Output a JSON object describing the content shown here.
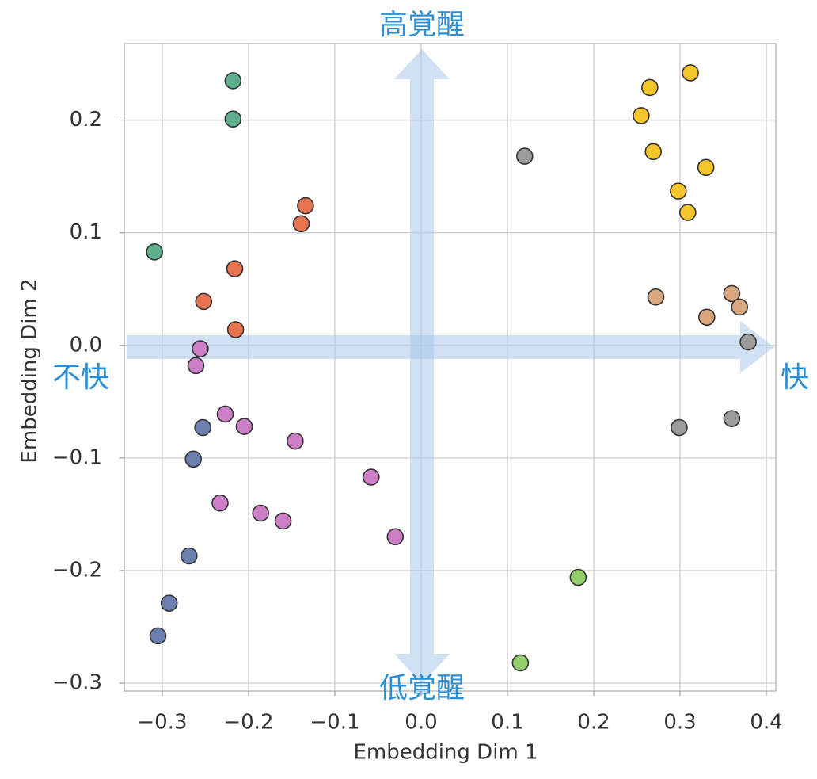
{
  "chart_data": {
    "type": "scatter",
    "xlabel": "Embedding Dim 1",
    "ylabel": "Embedding Dim 2",
    "annotations": {
      "top": "高覚醒",
      "bottom": "低覚醒",
      "left": "不快",
      "right": "快"
    },
    "xlim": [
      -0.344,
      0.411
    ],
    "ylim": [
      -0.307,
      0.268
    ],
    "xticks": [
      {
        "value": -0.3,
        "label": "−0.3"
      },
      {
        "value": -0.2,
        "label": "−0.2"
      },
      {
        "value": -0.1,
        "label": "−0.1"
      },
      {
        "value": 0,
        "label": "0.0"
      },
      0.1,
      0.2,
      0.3,
      0.4
    ],
    "yticks": [
      {
        "value": -0.3,
        "label": "−0.3"
      },
      {
        "value": -0.2,
        "label": "−0.2"
      },
      {
        "value": -0.1,
        "label": "−0.1"
      },
      {
        "value": 0,
        "label": "0.0"
      },
      0.1,
      0.2
    ],
    "grid": true,
    "series": [
      {
        "color": "#5fae8c",
        "x": [
          -0.218,
          -0.218,
          -0.309
        ],
        "y": [
          0.235,
          0.201,
          0.083
        ]
      },
      {
        "color": "#e8734f",
        "x": [
          -0.134,
          -0.139,
          -0.216,
          -0.252,
          -0.215
        ],
        "y": [
          0.124,
          0.108,
          0.068,
          0.039,
          0.014
        ]
      },
      {
        "color": "#cc7fc6",
        "x": [
          -0.256,
          -0.261,
          -0.227,
          -0.205,
          -0.146,
          -0.233,
          -0.186,
          -0.16,
          -0.058,
          -0.03
        ],
        "y": [
          -0.003,
          -0.018,
          -0.061,
          -0.072,
          -0.085,
          -0.14,
          -0.149,
          -0.156,
          -0.117,
          -0.17
        ]
      },
      {
        "color": "#6c80b0",
        "x": [
          -0.253,
          -0.264,
          -0.269,
          -0.292,
          -0.305
        ],
        "y": [
          -0.073,
          -0.101,
          -0.187,
          -0.229,
          -0.258
        ]
      },
      {
        "color": "#9c9c9c",
        "x": [
          0.12,
          0.299,
          0.36,
          0.379
        ],
        "y": [
          0.168,
          -0.073,
          -0.065,
          0.003
        ]
      },
      {
        "color": "#f5c52c",
        "x": [
          0.265,
          0.255,
          0.269,
          0.312,
          0.298,
          0.309,
          0.33
        ],
        "y": [
          0.229,
          0.204,
          0.172,
          0.242,
          0.137,
          0.118,
          0.158
        ]
      },
      {
        "color": "#d9a77e",
        "x": [
          0.272,
          0.331,
          0.36,
          0.369
        ],
        "y": [
          0.043,
          0.025,
          0.046,
          0.034
        ]
      },
      {
        "color": "#92cf6a",
        "x": [
          0.182,
          0.115
        ],
        "y": [
          -0.206,
          -0.282
        ]
      }
    ]
  }
}
